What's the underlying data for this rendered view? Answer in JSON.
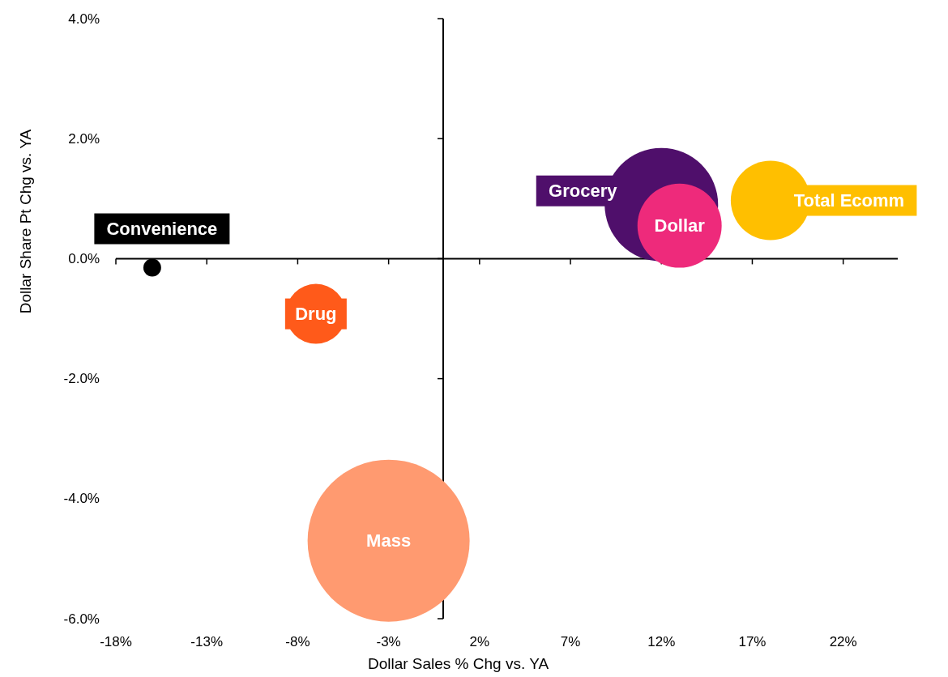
{
  "chart_data": {
    "type": "bubble",
    "xlabel": "Dollar Sales % Chg vs. YA",
    "ylabel": "Dollar Share Pt Chg vs. YA",
    "xlim": [
      -18,
      25
    ],
    "xticks": [
      {
        "value": -18,
        "label": "-18%"
      },
      {
        "value": -13,
        "label": "-13%"
      },
      {
        "value": -8,
        "label": "-8%"
      },
      {
        "value": -3,
        "label": "-3%"
      },
      {
        "value": 2,
        "label": "2%"
      },
      {
        "value": 7,
        "label": "7%"
      },
      {
        "value": 12,
        "label": "12%"
      },
      {
        "value": 17,
        "label": "17%"
      },
      {
        "value": 22,
        "label": "22%"
      }
    ],
    "ylim": [
      -6,
      4
    ],
    "yticks": [
      {
        "value": -6,
        "label": "-6.0%"
      },
      {
        "value": -4,
        "label": "-4.0%"
      },
      {
        "value": -2,
        "label": "-2.0%"
      },
      {
        "value": 0,
        "label": "0.0%"
      },
      {
        "value": 2,
        "label": "2.0%"
      },
      {
        "value": 4,
        "label": "4.0%"
      }
    ],
    "series": [
      {
        "name": "Convenience",
        "color": "#000000",
        "x": [
          -16
        ],
        "values": [
          -0.15
        ],
        "sizes": [
          0.012
        ]
      },
      {
        "name": "Drug",
        "color": "#ff5a1a",
        "x": [
          -7
        ],
        "values": [
          -0.92
        ],
        "sizes": [
          0.137
        ]
      },
      {
        "name": "Mass",
        "color": "#ff9a70",
        "x": [
          -3
        ],
        "values": [
          -4.7
        ],
        "sizes": [
          1
        ]
      },
      {
        "name": "Grocery",
        "color": "#4f0f6b",
        "x": [
          12
        ],
        "values": [
          0.9
        ],
        "sizes": [
          0.49
        ]
      },
      {
        "name": "Dollar",
        "color": "#ee2a7b",
        "x": [
          13
        ],
        "values": [
          0.55
        ],
        "sizes": [
          0.27
        ]
      },
      {
        "name": "Total Ecomm",
        "color": "#ffbf00",
        "x": [
          18
        ],
        "values": [
          0.97
        ],
        "sizes": [
          0.24
        ]
      }
    ]
  }
}
